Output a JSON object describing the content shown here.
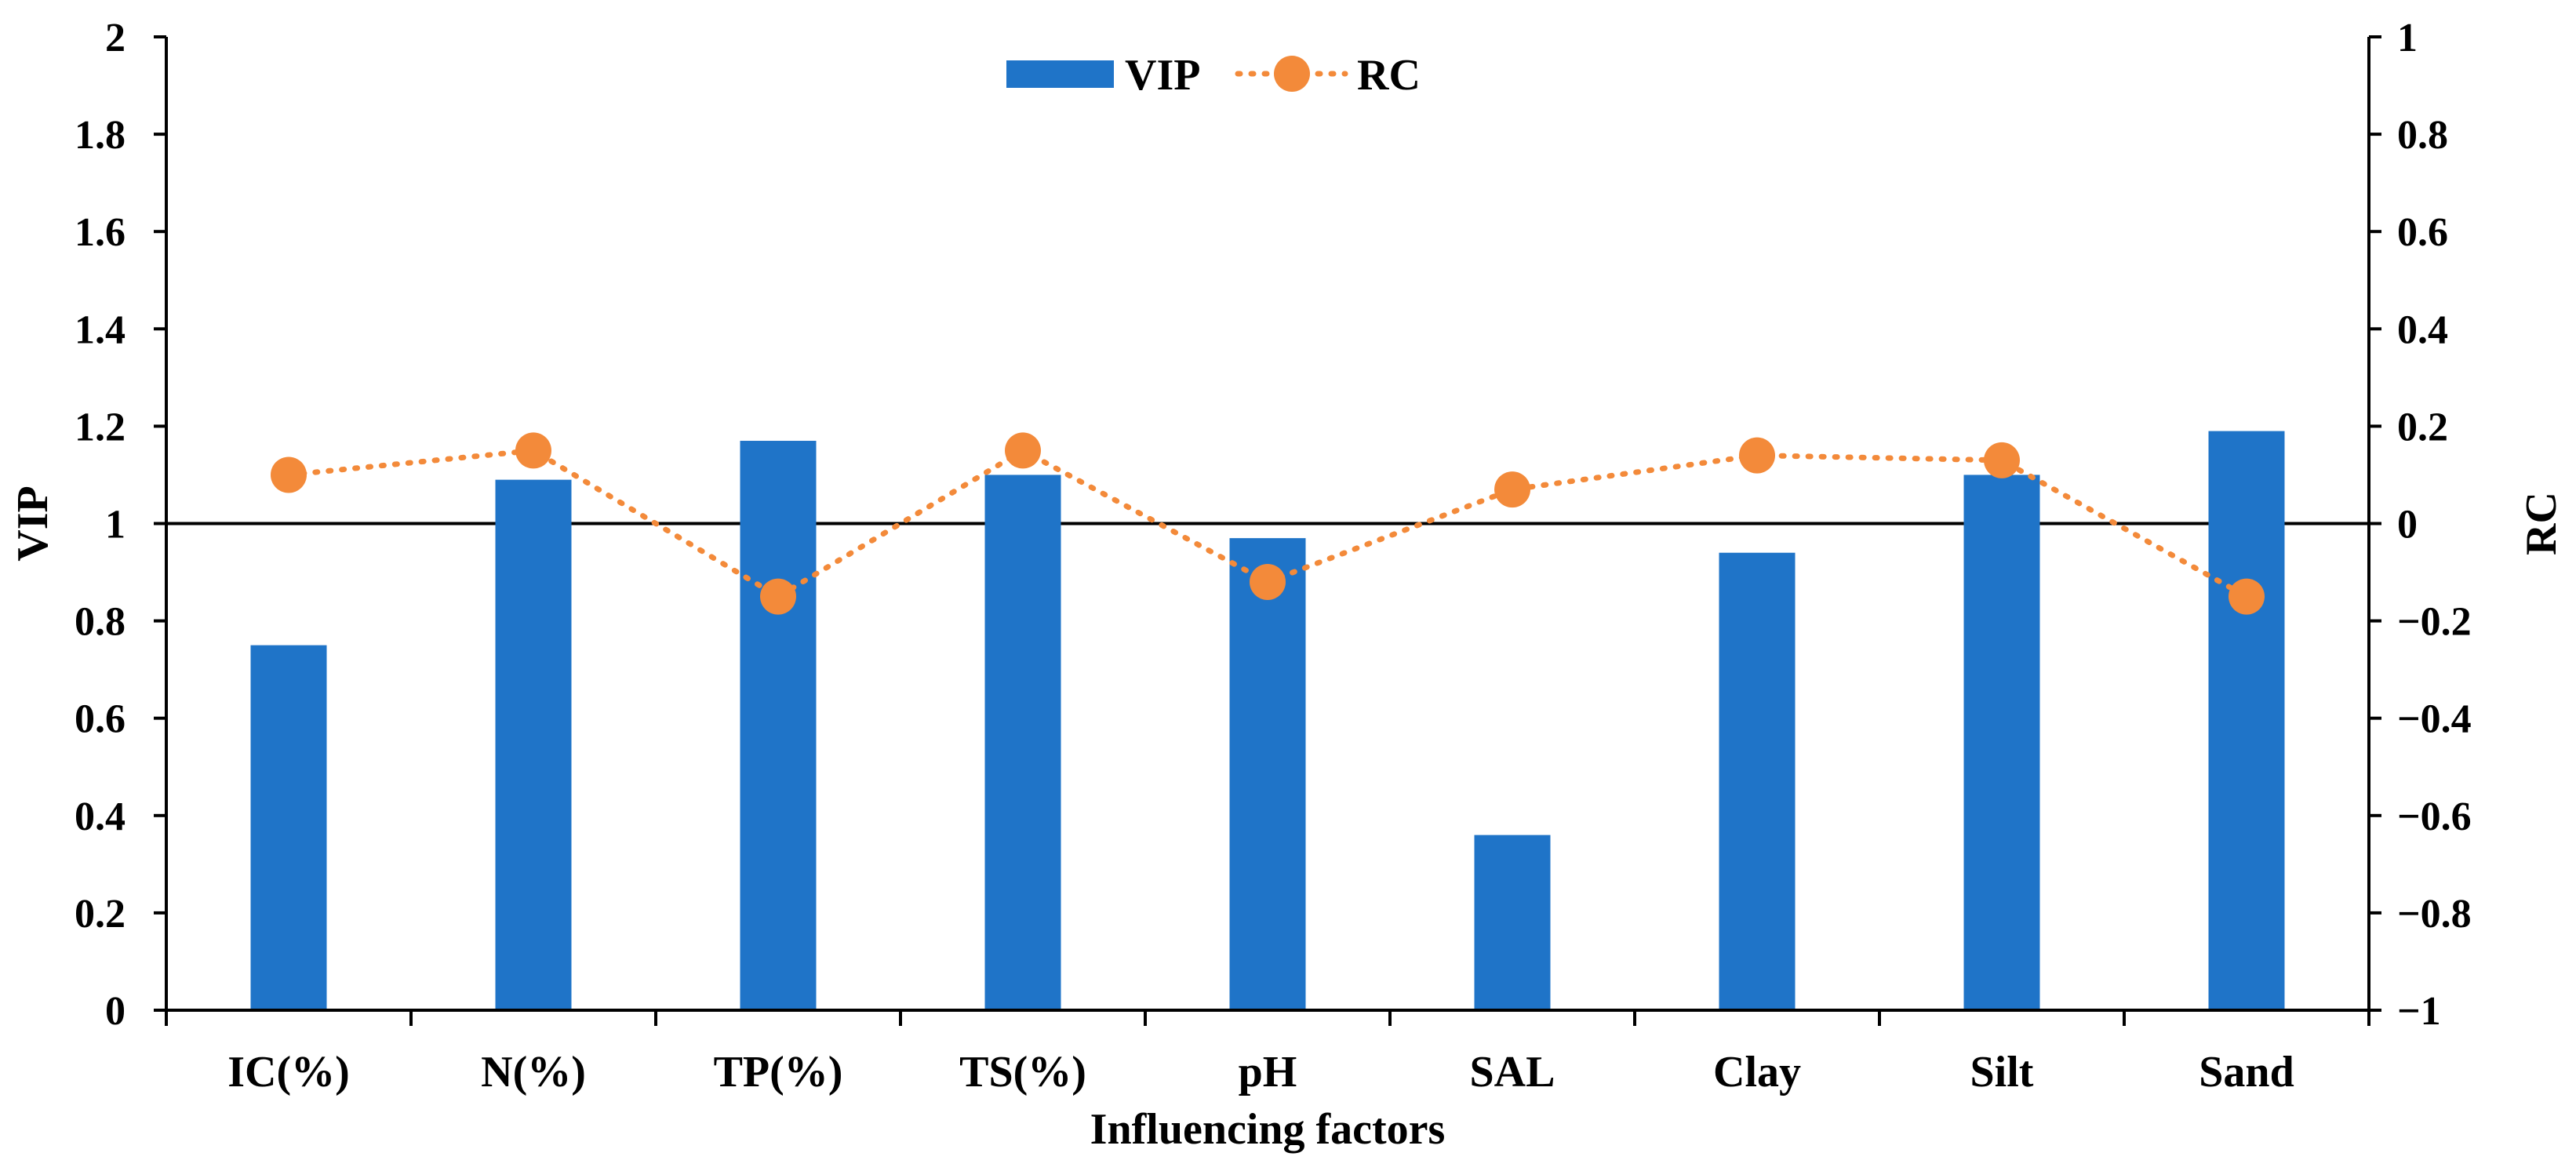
{
  "chart_data": {
    "type": "bar",
    "title": "",
    "xlabel": "Influencing factors",
    "ylabel": "VIP",
    "y2label": "RC",
    "categories": [
      "IC(%)",
      "N(%)",
      "TP(%)",
      "TS(%)",
      "pH",
      "SAL",
      "Clay",
      "Silt",
      "Sand"
    ],
    "ylim": [
      0,
      2
    ],
    "y2lim": [
      -1,
      1
    ],
    "yticks": [
      "0",
      "0.2",
      "0.4",
      "0.6",
      "0.8",
      "1",
      "1.2",
      "1.4",
      "1.6",
      "1.8",
      "2"
    ],
    "y2ticks": [
      "−1",
      "−0.8",
      "−0.6",
      "−0.4",
      "−0.2",
      "0",
      "0.2",
      "0.4",
      "0.6",
      "0.8",
      "1"
    ],
    "reference_line": 1,
    "legend_position": "top-center",
    "series": [
      {
        "name": "VIP",
        "type": "bar",
        "axis": "left",
        "color": "#1f74c8",
        "values": [
          0.75,
          1.09,
          1.17,
          1.1,
          0.97,
          0.36,
          0.94,
          1.1,
          1.19
        ]
      },
      {
        "name": "RC",
        "type": "line",
        "axis": "right",
        "color": "#f38a3a",
        "values": [
          0.1,
          0.15,
          -0.15,
          0.15,
          -0.12,
          0.07,
          0.14,
          0.13,
          -0.15
        ]
      }
    ]
  }
}
